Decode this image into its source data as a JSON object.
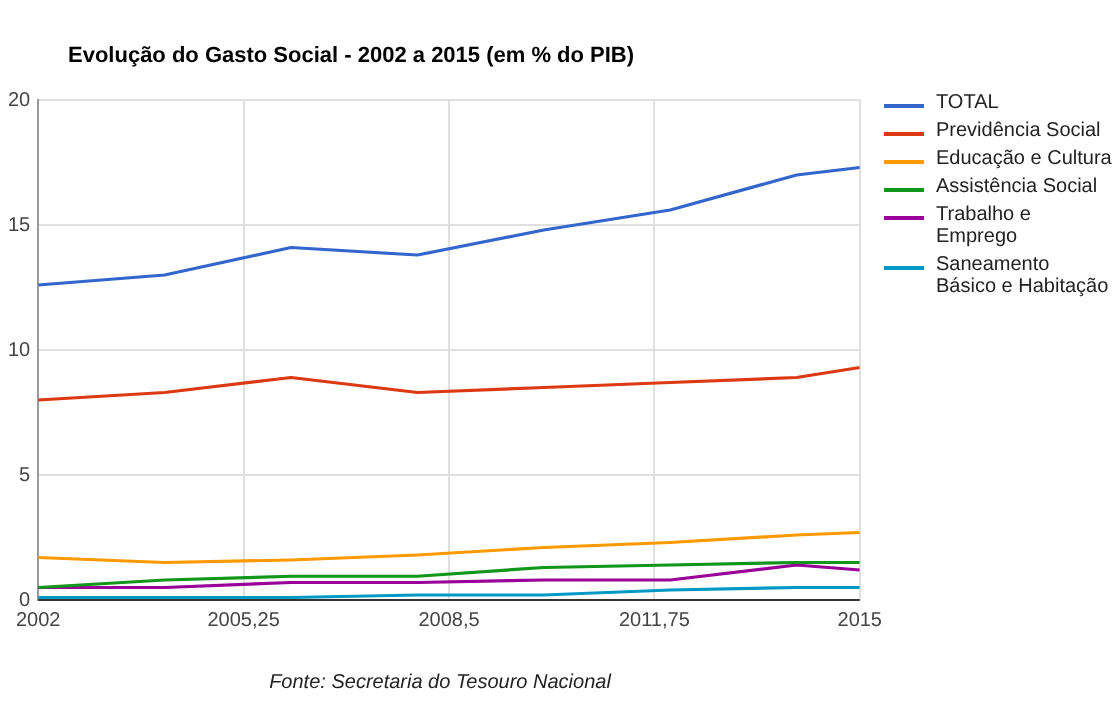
{
  "chart_data": {
    "type": "line",
    "title": "Evolução do Gasto Social - 2002 a 2015 (em % do PIB)",
    "x": [
      2002,
      2004,
      2006,
      2008,
      2010,
      2012,
      2014,
      2015
    ],
    "series": [
      {
        "name": "TOTAL",
        "color": "#3366cc",
        "values": [
          12.6,
          13.0,
          14.1,
          13.8,
          14.8,
          15.6,
          17.0,
          17.3
        ]
      },
      {
        "name": "Previdência Social",
        "color": "#dc3912",
        "values": [
          8.0,
          8.3,
          8.9,
          8.3,
          8.5,
          8.7,
          8.9,
          9.3
        ]
      },
      {
        "name": "Educação e Cultura",
        "color": "#ff9900",
        "values": [
          1.7,
          1.5,
          1.6,
          1.8,
          2.1,
          2.3,
          2.6,
          2.7
        ]
      },
      {
        "name": "Assistência Social",
        "color": "#109618",
        "values": [
          0.5,
          0.8,
          0.95,
          0.95,
          1.3,
          1.4,
          1.5,
          1.5
        ]
      },
      {
        "name": "Trabalho e Emprego",
        "color": "#990099",
        "values": [
          0.5,
          0.5,
          0.7,
          0.7,
          0.8,
          0.8,
          1.4,
          1.2
        ]
      },
      {
        "name": "Saneamento Básico e Habitação",
        "color": "#0099c6",
        "values": [
          0.1,
          0.1,
          0.1,
          0.2,
          0.2,
          0.4,
          0.5,
          0.5
        ]
      }
    ],
    "xlim": [
      2002,
      2015
    ],
    "xticks": [
      2002,
      {
        "value": 2005.25,
        "label": "2005,25"
      },
      {
        "value": 2008.5,
        "label": "2008,5"
      },
      {
        "value": 2011.75,
        "label": "2011,75"
      },
      2015
    ],
    "ylim": [
      0,
      20
    ],
    "yticks": [
      0,
      5,
      10,
      15,
      20
    ],
    "grid": true,
    "legend": "right",
    "marker": "none",
    "annotations": [
      "Fonte: Secretaria do Tesouro Nacional"
    ]
  }
}
